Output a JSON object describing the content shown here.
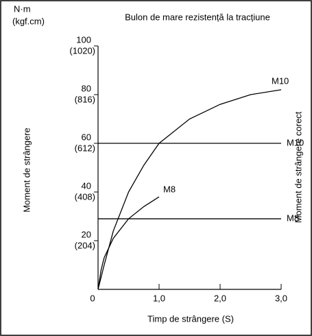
{
  "chart_data": {
    "type": "line",
    "title": "Bulon de mare rezistență la tracțiune",
    "y_unit": "N·m",
    "y_unit_secondary": "(kgf.cm)",
    "ylabel": "Moment de strângere",
    "y2label": "Moment de strângere corect",
    "xlabel": "Timp de strângere (S)",
    "xlim": [
      0,
      3
    ],
    "ylim": [
      0,
      100
    ],
    "xticks": [
      0,
      {
        "value": 1,
        "label": "1,0"
      },
      {
        "value": 2,
        "label": "2,0"
      },
      {
        "value": 3,
        "label": "3,0"
      }
    ],
    "yticks": [
      20,
      40,
      60,
      80,
      100
    ],
    "yticks_secondary": [
      "(204)",
      "(408)",
      "(612)",
      "(816)",
      "(1020)"
    ],
    "series": [
      {
        "name": "M10",
        "color": "#000000",
        "x": [
          0,
          0.1,
          0.25,
          0.5,
          0.75,
          1.0,
          1.5,
          2.0,
          2.5,
          3.0
        ],
        "values": [
          0,
          10,
          24,
          40,
          51,
          60,
          70,
          76,
          80,
          82
        ]
      },
      {
        "name": "M10",
        "color": "#000000",
        "x": [
          0,
          3.0
        ],
        "values": [
          60,
          60
        ]
      },
      {
        "name": "M8",
        "color": "#000000",
        "x": [
          0,
          0.05,
          0.1,
          0.25,
          0.5,
          0.75,
          1.0
        ],
        "values": [
          0,
          8,
          13,
          21,
          29,
          34,
          38
        ]
      },
      {
        "name": "M8",
        "color": "#000000",
        "x": [
          0,
          3.0
        ],
        "values": [
          29,
          29
        ]
      }
    ]
  }
}
